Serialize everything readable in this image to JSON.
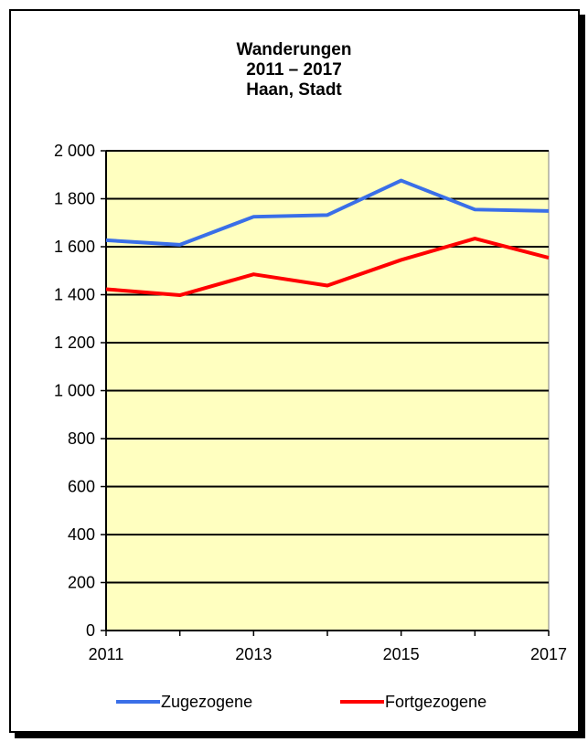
{
  "chart_data": {
    "type": "line",
    "title_lines": [
      "Wanderungen",
      "2011 – 2017",
      "Haan, Stadt"
    ],
    "x": [
      2011,
      2012,
      2013,
      2014,
      2015,
      2016,
      2017
    ],
    "x_tick_labels": [
      "2011",
      "2013",
      "2015",
      "2017"
    ],
    "x_tick_values": [
      2011,
      2013,
      2015,
      2017
    ],
    "y_tick_labels": [
      "0",
      "200",
      "400",
      "600",
      "800",
      "1 000",
      "1 200",
      "1 400",
      "1 600",
      "1 800",
      "2 000"
    ],
    "y_tick_values": [
      0,
      200,
      400,
      600,
      800,
      1000,
      1200,
      1400,
      1600,
      1800,
      2000
    ],
    "ylim": [
      0,
      2000
    ],
    "xlim": [
      2011,
      2017
    ],
    "grid": "horizontal",
    "plot_background": "#FFFFC0",
    "legend_position": "bottom",
    "series": [
      {
        "name": "Zugezogene",
        "color": "#3A6FE8",
        "values": [
          1627,
          1608,
          1725,
          1732,
          1876,
          1755,
          1749
        ]
      },
      {
        "name": "Fortgezogene",
        "color": "#FF0000",
        "values": [
          1423,
          1398,
          1485,
          1438,
          1545,
          1634,
          1554
        ]
      }
    ]
  }
}
